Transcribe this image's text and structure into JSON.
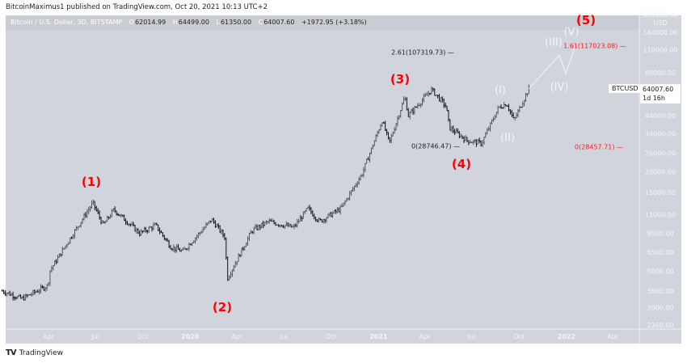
{
  "published": "BitcoinMaximus1 published on TradingView.com, Oct 20, 2021 10:13 UTC+2",
  "legend": {
    "title": "Bitcoin / U.S. Dollar, 3D, BITSTAMP",
    "o_key": "O",
    "o": "62014.99",
    "h_key": "H",
    "h": "64499.00",
    "l_key": "L",
    "l": "61350.00",
    "c_key": "C",
    "c": "64007.60",
    "change": "+1972.95 (+3.18%)"
  },
  "price_tag": {
    "symbol": "BTCUSD",
    "price": "64007.60",
    "countdown": "1d 16h"
  },
  "logo": {
    "text": "TradingView",
    "mark": "TV"
  },
  "waves": {
    "w1": "(1)",
    "w2": "(2)",
    "w3": "(3)",
    "w4": "(4)",
    "w5": "(5)",
    "s1": "(I)",
    "s2": "(II)",
    "s3": "(III)",
    "s4": "(IV)",
    "s5": "(V)"
  },
  "fibs": {
    "a": "2.61(107319.73) —",
    "b": "0(28746.47) —",
    "c": "1.61(117023.08) —",
    "d": "0(28457.71) —"
  },
  "colors": {
    "background": "#d1d4dc",
    "wave_major": "#ff0000",
    "wave_minor": "#f4f5f8",
    "bars": "#1a1a1a"
  },
  "chart_data": {
    "type": "ohlc-bar",
    "scale": "log",
    "interval": "3D",
    "currency": "USD",
    "y_ticks": [
      "180000.00",
      "140000.00",
      "110000.00",
      "80000.00",
      "44000.00",
      "34000.00",
      "26000.00",
      "20000.00",
      "15000.00",
      "11000.00",
      "8500.00",
      "6500.00",
      "5000.00",
      "3800.00",
      "3000.00",
      "2360.00"
    ],
    "x_ticks": [
      [
        "2019-04-01",
        "Apr"
      ],
      [
        "2019-07-01",
        "Jul"
      ],
      [
        "2019-10-01",
        "Oct"
      ],
      [
        "2020-01-01",
        "2020"
      ],
      [
        "2020-04-01",
        "Apr"
      ],
      [
        "2020-07-01",
        "Jul"
      ],
      [
        "2020-10-01",
        "Oct"
      ],
      [
        "2021-01-01",
        "2021"
      ],
      [
        "2021-04-01",
        "Apr"
      ],
      [
        "2021-07-01",
        "Jul"
      ],
      [
        "2021-10-01",
        "Oct"
      ],
      [
        "2022-01-01",
        "2022"
      ],
      [
        "2022-04-01",
        "Apr"
      ]
    ],
    "price_path": [
      [
        "2019-01-01",
        3800
      ],
      [
        "2019-02-08",
        3400
      ],
      [
        "2019-03-31",
        4100
      ],
      [
        "2019-04-03",
        5000
      ],
      [
        "2019-05-14",
        8000
      ],
      [
        "2019-06-26",
        13000
      ],
      [
        "2019-07-16",
        9500
      ],
      [
        "2019-08-06",
        11800
      ],
      [
        "2019-09-25",
        8500
      ],
      [
        "2019-10-26",
        9500
      ],
      [
        "2019-11-25",
        7000
      ],
      [
        "2019-12-18",
        6600
      ],
      [
        "2020-02-12",
        10300
      ],
      [
        "2020-03-09",
        8000
      ],
      [
        "2020-03-13",
        4500
      ],
      [
        "2020-04-30",
        8800
      ],
      [
        "2020-06-01",
        10000
      ],
      [
        "2020-07-20",
        9200
      ],
      [
        "2020-08-17",
        12000
      ],
      [
        "2020-09-08",
        10000
      ],
      [
        "2020-10-20",
        12000
      ],
      [
        "2020-11-30",
        19500
      ],
      [
        "2021-01-08",
        41000
      ],
      [
        "2021-01-22",
        30000
      ],
      [
        "2021-02-21",
        57000
      ],
      [
        "2021-02-28",
        44000
      ],
      [
        "2021-04-14",
        63000
      ],
      [
        "2021-05-12",
        50000
      ],
      [
        "2021-05-19",
        37000
      ],
      [
        "2021-06-22",
        31000
      ],
      [
        "2021-07-20",
        29800
      ],
      [
        "2021-08-22",
        49000
      ],
      [
        "2021-09-07",
        52000
      ],
      [
        "2021-09-21",
        41000
      ],
      [
        "2021-10-20",
        64007.6
      ]
    ],
    "projection": [
      [
        "2021-10-20",
        64007.6
      ],
      [
        "2021-12-18",
        102000
      ],
      [
        "2021-12-31",
        79000
      ],
      [
        "2022-01-19",
        118000
      ]
    ]
  }
}
